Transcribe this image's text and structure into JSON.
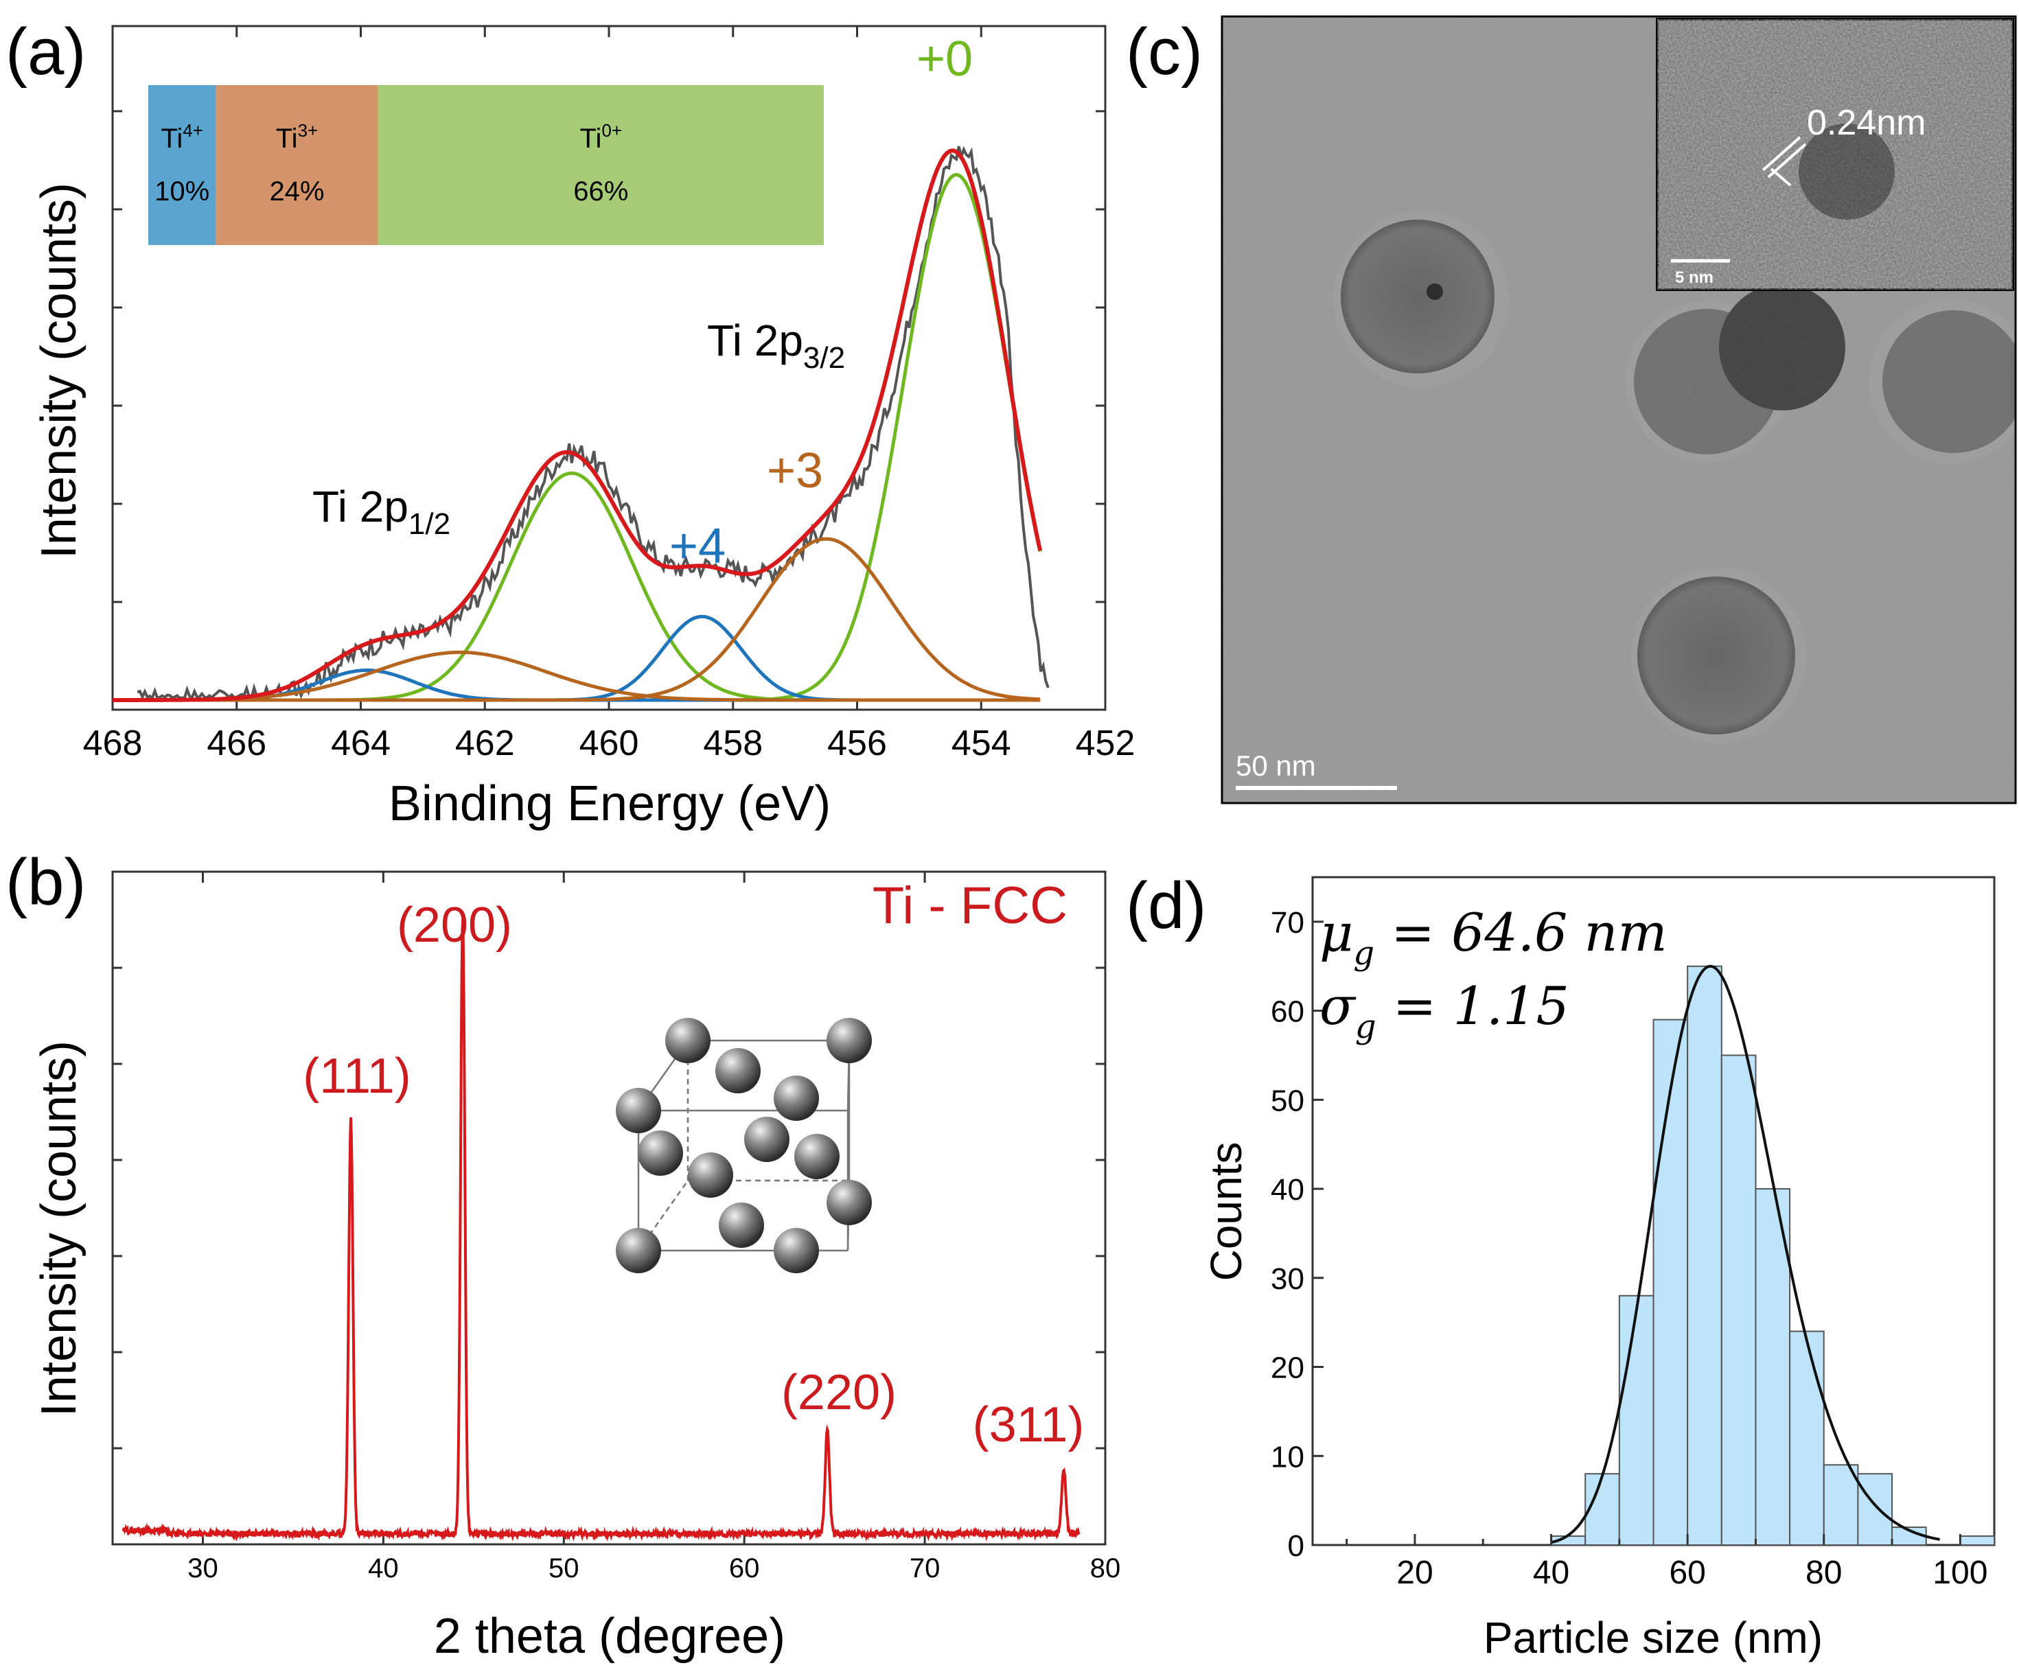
{
  "panels": {
    "a": {
      "label": "(a)"
    },
    "b": {
      "label": "(b)"
    },
    "c": {
      "label": "(c)"
    },
    "d": {
      "label": "(d)"
    }
  },
  "chart_data": [
    {
      "id": "xps",
      "type": "line",
      "title": "",
      "xlabel": "Binding Energy (eV)",
      "ylabel": "Intensity (counts)",
      "xlim": [
        468,
        452
      ],
      "ylim": [
        0,
        100
      ],
      "x_ticks": [
        468,
        466,
        464,
        462,
        460,
        458,
        456,
        454,
        452
      ],
      "annotations": {
        "ti2p12_main": "Ti 2p",
        "ti2p12_sub": "1/2",
        "ti2p32_main": "Ti 2p",
        "ti2p32_sub": "3/2",
        "plus4": "+4",
        "plus3": "+3",
        "plus0": "+0"
      },
      "composition": [
        {
          "main": "Ti",
          "sup": "4+",
          "pct": "10%",
          "value": 10,
          "color": "#5aa5cf"
        },
        {
          "main": "Ti",
          "sup": "3+",
          "pct": "24%",
          "value": 24,
          "color": "#d4956a"
        },
        {
          "main": "Ti",
          "sup": "0+",
          "pct": "66%",
          "value": 66,
          "color": "#a6cc78"
        }
      ],
      "components": [
        {
          "name": "Ti0 2p3/2",
          "color": "#6fb81f",
          "center": 454.4,
          "height": 88,
          "fwhm": 2.0
        },
        {
          "name": "Ti0 2p1/2",
          "color": "#6fb81f",
          "center": 460.6,
          "height": 38,
          "fwhm": 2.3
        },
        {
          "name": "Ti4+ 2p3/2",
          "color": "#1f75bb",
          "center": 458.5,
          "height": 14,
          "fwhm": 1.5
        },
        {
          "name": "Ti4+ 2p1/2",
          "color": "#1f75bb",
          "center": 463.9,
          "height": 5,
          "fwhm": 1.8
        },
        {
          "name": "Ti3+ 2p3/2",
          "color": "#b5651d",
          "center": 456.5,
          "height": 27,
          "fwhm": 2.5
        },
        {
          "name": "Ti3+ 2p1/2",
          "color": "#b5651d",
          "center": 462.4,
          "height": 8,
          "fwhm": 3.2
        }
      ],
      "envelope_color": "#d7191c",
      "raw_color": "#555555"
    },
    {
      "id": "xrd",
      "type": "line",
      "title": "Ti - FCC",
      "xlabel": "2 theta (degree)",
      "ylabel": "Intensity (counts)",
      "xlim": [
        25,
        80
      ],
      "ylim": [
        0,
        100
      ],
      "x_ticks": [
        30,
        40,
        50,
        60,
        70,
        80
      ],
      "color": "#d7191c",
      "peaks": [
        {
          "label": "(111)",
          "x": 38.2,
          "height": 64
        },
        {
          "label": "(200)",
          "x": 44.4,
          "height": 95
        },
        {
          "label": "(220)",
          "x": 64.6,
          "height": 16
        },
        {
          "label": "(311)",
          "x": 77.7,
          "height": 10
        }
      ]
    },
    {
      "id": "tem",
      "type": "image",
      "scale_bar": "50 nm",
      "inset_scale_bar": "5 nm",
      "lattice_spacing": "0.24nm"
    },
    {
      "id": "hist",
      "type": "bar",
      "xlabel": "Particle size (nm)",
      "ylabel": "Counts",
      "xlim": [
        5,
        105
      ],
      "ylim": [
        0,
        75
      ],
      "x_ticks": [
        20,
        40,
        60,
        80,
        100
      ],
      "y_ticks": [
        0,
        10,
        20,
        30,
        40,
        50,
        60,
        70
      ],
      "bin_width": 5,
      "bins": [
        {
          "x0": 40,
          "count": 1
        },
        {
          "x0": 45,
          "count": 8
        },
        {
          "x0": 50,
          "count": 28
        },
        {
          "x0": 55,
          "count": 59
        },
        {
          "x0": 60,
          "count": 65
        },
        {
          "x0": 65,
          "count": 55
        },
        {
          "x0": 70,
          "count": 40
        },
        {
          "x0": 75,
          "count": 24
        },
        {
          "x0": 80,
          "count": 9
        },
        {
          "x0": 85,
          "count": 8
        },
        {
          "x0": 90,
          "count": 2
        },
        {
          "x0": 100,
          "count": 1
        }
      ],
      "fit": {
        "mu_g": 64.6,
        "sigma_g": 1.15,
        "peak": 65
      },
      "stats": {
        "mu_sym": "μ",
        "mu_sub": "g",
        "mu_text": " = 64.6 nm",
        "sigma_sym": "σ",
        "sigma_sub": "g",
        "sigma_text": " = 1.15"
      },
      "bar_color": "#bde4fa"
    }
  ]
}
